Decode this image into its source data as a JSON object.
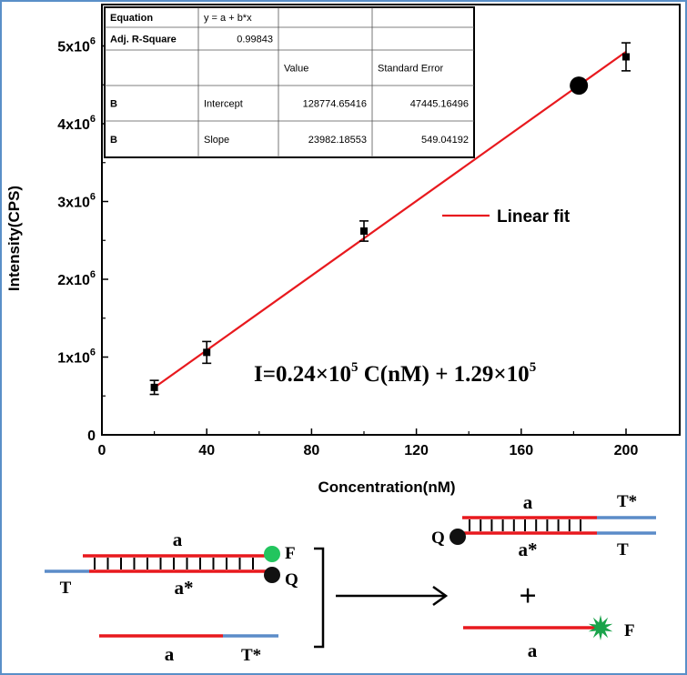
{
  "chart_data": {
    "type": "scatter",
    "xlabel": "Concentration(nM)",
    "ylabel": "Intensity(CPS)",
    "xlim": [
      0,
      210
    ],
    "ylim": [
      0,
      5300000
    ],
    "x_ticks": [
      {
        "value": 0,
        "label": "0"
      },
      {
        "value": 40,
        "label": "40"
      },
      {
        "value": 80,
        "label": "80"
      },
      {
        "value": 120,
        "label": "120"
      },
      {
        "value": 160,
        "label": "160"
      },
      {
        "value": 200,
        "label": "200"
      }
    ],
    "y_ticks": [
      {
        "value": 0,
        "base": "0",
        "exp": ""
      },
      {
        "value": 1000000,
        "base": "1x10",
        "exp": "6"
      },
      {
        "value": 2000000,
        "base": "2x10",
        "exp": "6"
      },
      {
        "value": 3000000,
        "base": "3x10",
        "exp": "6"
      },
      {
        "value": 4000000,
        "base": "4x10",
        "exp": "6"
      },
      {
        "value": 5000000,
        "base": "5x10",
        "exp": "6"
      }
    ],
    "points": [
      {
        "x": 20,
        "y": 610000,
        "err": 90000
      },
      {
        "x": 40,
        "y": 1060000,
        "err": 140000
      },
      {
        "x": 100,
        "y": 2620000,
        "err": 130000
      },
      {
        "x": 200,
        "y": 4860000,
        "err": 180000
      }
    ],
    "highlight_point": {
      "x": 182,
      "y": 4490000
    },
    "fit_line": {
      "x_start": 20,
      "x_end": 200,
      "intercept": 128774.65416,
      "slope": 23982.18553
    },
    "legend": {
      "label": "Linear fit",
      "color": "#e8191e",
      "position": "right-middle"
    },
    "equation": {
      "p1": "I=0.24×10",
      "e1": "5",
      "p2": " C(nM) + 1.29×10",
      "e2": "5"
    },
    "fit_table": {
      "rows": [
        [
          "Equation",
          "y = a + b*x",
          "",
          ""
        ],
        [
          "Adj. R-Square",
          "0.99843",
          "",
          ""
        ],
        [
          "",
          "",
          "Value",
          "Standard Error"
        ],
        [
          "B",
          "Intercept",
          "128774.65416",
          "47445.16496"
        ],
        [
          "B",
          "Slope",
          "23982.18553",
          "549.04192"
        ]
      ]
    }
  },
  "scheme": {
    "colors": {
      "red": "#e8191e",
      "blue": "#5b8cc8",
      "green": "#22c55e",
      "star": "#1aa34a"
    },
    "left": {
      "top_label": "a",
      "bottom_label": "a*",
      "tail_label": "T",
      "fluor_label": "F",
      "quench_label": "Q"
    },
    "free_strand": {
      "label": "a",
      "tail_label": "T*"
    },
    "right_duplex": {
      "top_label": "a",
      "top_tail_label": "T*",
      "bottom_label": "a*",
      "bottom_tail_label": "T",
      "quench_label": "Q"
    },
    "plus": "+",
    "right_free": {
      "label": "a",
      "fluor_label": "F"
    }
  }
}
